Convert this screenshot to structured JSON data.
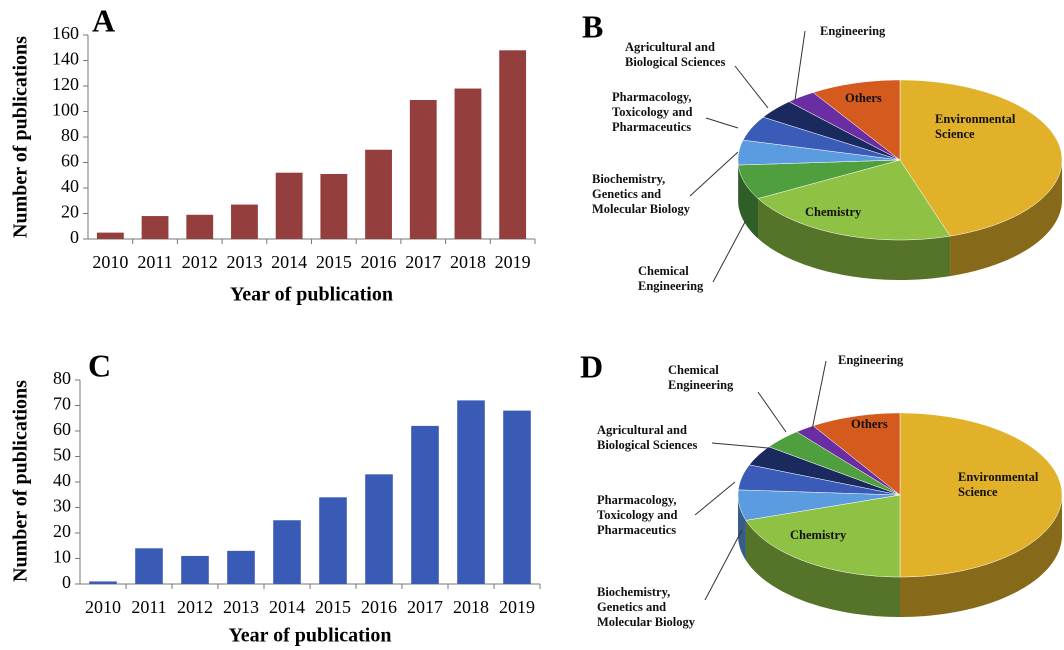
{
  "chart_data": [
    {
      "type": "bar",
      "panel": "A",
      "categories": [
        "2010",
        "2011",
        "2012",
        "2013",
        "2014",
        "2015",
        "2016",
        "2017",
        "2018",
        "2019"
      ],
      "values": [
        5,
        18,
        19,
        27,
        52,
        51,
        70,
        109,
        118,
        148
      ],
      "color": "#943e3e",
      "ylim": [
        0,
        160
      ],
      "yticks": [
        0,
        20,
        40,
        60,
        80,
        100,
        120,
        140,
        160
      ],
      "xlabel": "Year of publication",
      "ylabel": "Number of publications"
    },
    {
      "type": "pie",
      "panel": "B",
      "categories": [
        "Environmental Science",
        "Chemistry",
        "Chemical Engineering",
        "Biochemistry, Genetics and Molecular Biology",
        "Pharmacology, Toxicology and Pharmaceutics",
        "Agricultural and Biological Sciences",
        "Engineering",
        "Others"
      ],
      "values": [
        45,
        22,
        7,
        5,
        5,
        4,
        3,
        9
      ],
      "colors": [
        "#e1b12a",
        "#8fc244",
        "#4f9f3f",
        "#5b9be0",
        "#3a5cb8",
        "#1b2a5e",
        "#6b2ea2",
        "#d45a1e"
      ]
    },
    {
      "type": "bar",
      "panel": "C",
      "categories": [
        "2010",
        "2011",
        "2012",
        "2013",
        "2014",
        "2015",
        "2016",
        "2017",
        "2018",
        "2019"
      ],
      "values": [
        1,
        14,
        11,
        13,
        25,
        34,
        43,
        62,
        72,
        68
      ],
      "color": "#3a5bb5",
      "ylim": [
        0,
        80
      ],
      "yticks": [
        0,
        10,
        20,
        30,
        40,
        50,
        60,
        70,
        80
      ],
      "xlabel": "Year of publication",
      "ylabel": "Number of publications"
    },
    {
      "type": "pie",
      "panel": "D",
      "categories": [
        "Environmental Science",
        "Chemistry",
        "Biochemistry, Genetics and Molecular Biology",
        "Pharmacology, Toxicology and Pharmaceutics",
        "Agricultural and Biological Sciences",
        "Chemical Engineering",
        "Engineering",
        "Others"
      ],
      "values": [
        50,
        20,
        6,
        5,
        4,
        4,
        2,
        9
      ],
      "colors": [
        "#e1b12a",
        "#8fc244",
        "#5b9be0",
        "#3a5cb8",
        "#1b2a5e",
        "#4f9f3f",
        "#6b2ea2",
        "#d45a1e"
      ]
    }
  ]
}
